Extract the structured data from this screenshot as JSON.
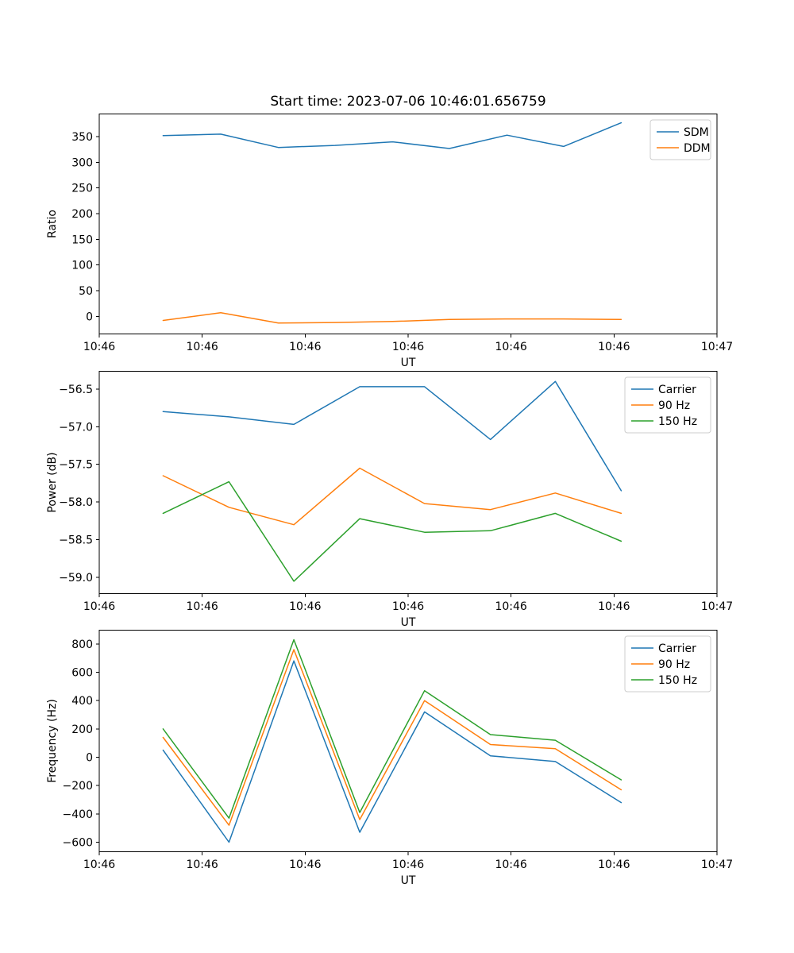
{
  "figure": {
    "title": "Start time: 2023-07-06 10:46:01.656759",
    "background": "#ffffff"
  },
  "colors": {
    "blue": "#1f77b4",
    "orange": "#ff7f0e",
    "green": "#2ca02c",
    "legend_border": "#cccccc",
    "axes": "#000000"
  },
  "chart_data": [
    {
      "type": "line",
      "ylabel": "Ratio",
      "xlabel": "UT",
      "legend_loc": "upper right",
      "grid": false,
      "xlim": [
        0,
        60
      ],
      "ylim": [
        -35,
        395
      ],
      "xtick_labels": [
        "10:46",
        "10:46",
        "10:46",
        "10:46",
        "10:46",
        "10:46",
        "10:47"
      ],
      "yticks": [
        0,
        50,
        100,
        150,
        200,
        250,
        300,
        350
      ],
      "ytick_labels": [
        "0",
        "50",
        "100",
        "150",
        "200",
        "250",
        "300",
        "350"
      ],
      "x": [
        6.2,
        11.8,
        17.4,
        22.9,
        28.5,
        34.0,
        39.6,
        45.1,
        50.7
      ],
      "series": [
        {
          "name": "SDM",
          "color": "#1f77b4",
          "values": [
            352,
            355,
            329,
            333,
            340,
            327,
            353,
            331,
            377
          ]
        },
        {
          "name": "DDM",
          "color": "#ff7f0e",
          "values": [
            -8,
            7,
            -13,
            -12,
            -10,
            -6,
            -5,
            -5,
            -6
          ]
        }
      ]
    },
    {
      "type": "line",
      "ylabel": "Power (dB)",
      "xlabel": "UT",
      "legend_loc": "upper right",
      "grid": false,
      "xlim": [
        0,
        60
      ],
      "ylim": [
        -59.22,
        -56.26
      ],
      "xtick_labels": [
        "10:46",
        "10:46",
        "10:46",
        "10:46",
        "10:46",
        "10:46",
        "10:47"
      ],
      "yticks": [
        -59.0,
        -58.5,
        -58.0,
        -57.5,
        -57.0,
        -56.5
      ],
      "ytick_labels": [
        "−59.0",
        "−58.5",
        "−58.0",
        "−57.5",
        "−57.0",
        "−56.5"
      ],
      "x": [
        6.2,
        12.6,
        18.9,
        25.3,
        31.6,
        38.0,
        44.3,
        50.7
      ],
      "series": [
        {
          "name": "Carrier",
          "color": "#1f77b4",
          "values": [
            -56.8,
            -56.87,
            -56.97,
            -56.47,
            -56.47,
            -57.17,
            -56.4,
            -57.85
          ]
        },
        {
          "name": "90 Hz",
          "color": "#ff7f0e",
          "values": [
            -57.65,
            -58.07,
            -58.3,
            -57.55,
            -58.02,
            -58.1,
            -57.88,
            -58.15
          ]
        },
        {
          "name": "150 Hz",
          "color": "#2ca02c",
          "values": [
            -58.15,
            -57.73,
            -59.05,
            -58.22,
            -58.4,
            -58.38,
            -58.15,
            -58.52
          ]
        }
      ]
    },
    {
      "type": "line",
      "ylabel": "Frequency (Hz)",
      "xlabel": "UT",
      "legend_loc": "upper right",
      "grid": false,
      "xlim": [
        0,
        60
      ],
      "ylim": [
        -670,
        900
      ],
      "xtick_labels": [
        "10:46",
        "10:46",
        "10:46",
        "10:46",
        "10:46",
        "10:46",
        "10:47"
      ],
      "yticks": [
        -600,
        -400,
        -200,
        0,
        200,
        400,
        600,
        800
      ],
      "ytick_labels": [
        "−600",
        "−400",
        "−200",
        "0",
        "200",
        "400",
        "600",
        "800"
      ],
      "x": [
        6.2,
        12.6,
        18.9,
        25.3,
        31.6,
        38.0,
        44.3,
        50.7
      ],
      "series": [
        {
          "name": "Carrier",
          "color": "#1f77b4",
          "values": [
            50,
            -600,
            680,
            -530,
            320,
            10,
            -30,
            -320
          ]
        },
        {
          "name": "90 Hz",
          "color": "#ff7f0e",
          "values": [
            140,
            -480,
            760,
            -440,
            400,
            90,
            60,
            -230
          ]
        },
        {
          "name": "150 Hz",
          "color": "#2ca02c",
          "values": [
            200,
            -430,
            830,
            -390,
            470,
            160,
            120,
            -160
          ]
        }
      ]
    }
  ]
}
